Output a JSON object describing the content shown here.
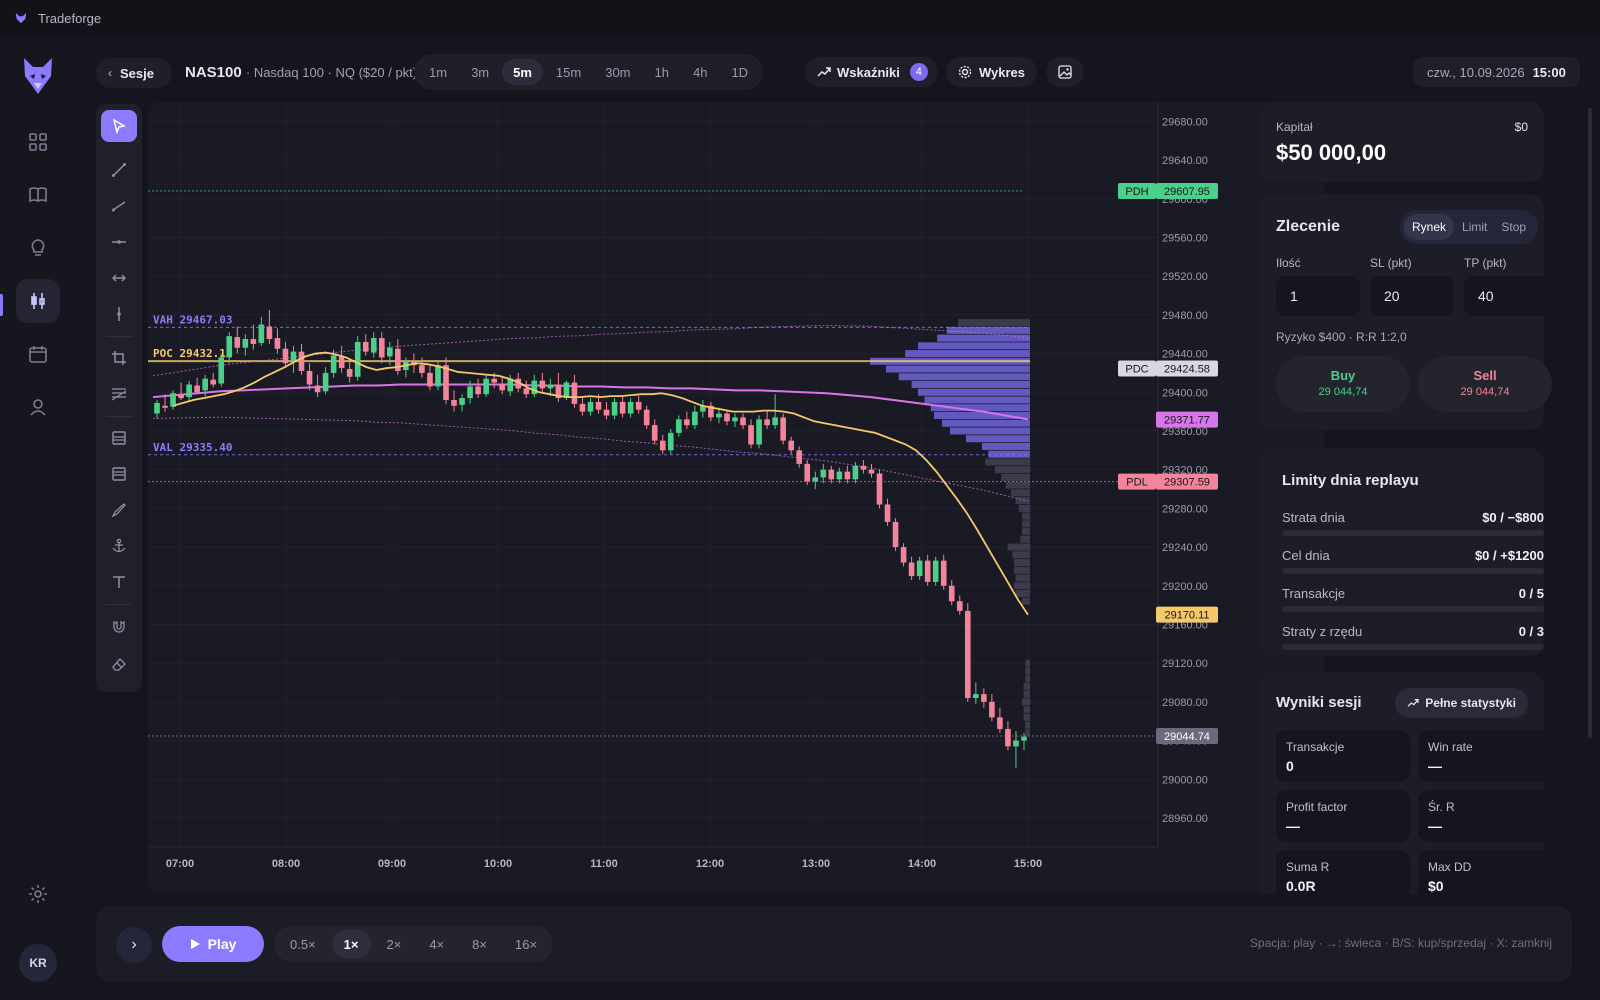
{
  "app": {
    "title": "Tradeforge",
    "avatar_initials": "KR"
  },
  "rail": {
    "icons": [
      "grid-icon",
      "book-icon",
      "lightbulb-icon",
      "candles-icon",
      "calendar-icon",
      "user-icon"
    ],
    "active": "candles-icon",
    "bottom_icon": "gear-icon"
  },
  "header": {
    "back_label": "Sesje",
    "symbol": "NAS100",
    "symbol_desc": "· Nasdaq 100 · NQ ($20 / pkt)",
    "timeframes": [
      "1m",
      "3m",
      "5m",
      "15m",
      "30m",
      "1h",
      "4h",
      "1D"
    ],
    "active_timeframe": "5m",
    "indicators_label": "Wskaźniki",
    "indicators_count": "4",
    "chart_label": "Wykres",
    "date": "czw., 10.09.2026",
    "time": "15:00"
  },
  "chart_data": {
    "type": "candlestick",
    "symbol": "NAS100",
    "timeframe": "5m",
    "x_ticks": [
      "07:00",
      "08:00",
      "09:00",
      "10:00",
      "11:00",
      "12:00",
      "13:00",
      "14:00",
      "15:00"
    ],
    "y_ticks": [
      "29680.00",
      "29640.00",
      "29600.00",
      "29560.00",
      "29520.00",
      "29480.00",
      "29440.00",
      "29400.00",
      "29360.00",
      "29320.00",
      "29280.00",
      "29240.00",
      "29200.00",
      "29160.00",
      "29120.00",
      "29080.00",
      "29040.00",
      "29000.00",
      "28960.00"
    ],
    "ylim": [
      28930,
      29700
    ],
    "price_labels": [
      {
        "tag": "PDH",
        "value": "29607.95",
        "color": "#4bd08a"
      },
      {
        "tag": "PDC",
        "value": "29424.58",
        "color": "#d8d8e4"
      },
      {
        "tag": "",
        "value": "29371.77",
        "color": "#d776e8"
      },
      {
        "tag": "PDL",
        "value": "29307.59",
        "color": "#f3849a"
      },
      {
        "tag": "",
        "value": "29170.11",
        "color": "#f5c96a"
      },
      {
        "tag": "",
        "value": "29044.74",
        "color": "#6a6a7c"
      }
    ],
    "annotations": [
      {
        "text": "VAH 29467.03",
        "value": 29467.03,
        "color": "#8b7bff"
      },
      {
        "text": "POC 29432.16",
        "value": 29432.16,
        "color": "#f5c96a"
      },
      {
        "text": "VAL 29335.40",
        "value": 29335.4,
        "color": "#8b7bff"
      }
    ],
    "last_price": 29044.74,
    "ema_last": 29170.11,
    "vwap_last": 29371.77,
    "candles_ohlc": [
      [
        29378,
        29392,
        29373,
        29389
      ],
      [
        29386,
        29398,
        29380,
        29384
      ],
      [
        29385,
        29402,
        29382,
        29399
      ],
      [
        29398,
        29410,
        29392,
        29394
      ],
      [
        29395,
        29412,
        29390,
        29408
      ],
      [
        29407,
        29415,
        29398,
        29400
      ],
      [
        29402,
        29418,
        29396,
        29414
      ],
      [
        29413,
        29420,
        29405,
        29408
      ],
      [
        29409,
        29440,
        29406,
        29436
      ],
      [
        29436,
        29462,
        29430,
        29458
      ],
      [
        29457,
        29468,
        29440,
        29446
      ],
      [
        29446,
        29460,
        29438,
        29455
      ],
      [
        29455,
        29470,
        29444,
        29450
      ],
      [
        29451,
        29478,
        29448,
        29470
      ],
      [
        29468,
        29485,
        29450,
        29455
      ],
      [
        29456,
        29466,
        29440,
        29445
      ],
      [
        29445,
        29452,
        29425,
        29430
      ],
      [
        29431,
        29448,
        29420,
        29442
      ],
      [
        29442,
        29450,
        29418,
        29422
      ],
      [
        29422,
        29430,
        29402,
        29408
      ],
      [
        29407,
        29418,
        29395,
        29400
      ],
      [
        29401,
        29426,
        29398,
        29420
      ],
      [
        29420,
        29444,
        29415,
        29438
      ],
      [
        29437,
        29448,
        29420,
        29425
      ],
      [
        29424,
        29434,
        29410,
        29416
      ],
      [
        29416,
        29458,
        29412,
        29452
      ],
      [
        29452,
        29460,
        29438,
        29442
      ],
      [
        29441,
        29462,
        29436,
        29456
      ],
      [
        29456,
        29462,
        29430,
        29436
      ],
      [
        29437,
        29452,
        29428,
        29446
      ],
      [
        29445,
        29455,
        29418,
        29422
      ],
      [
        29423,
        29436,
        29415,
        29432
      ],
      [
        29432,
        29440,
        29420,
        29428
      ],
      [
        29428,
        29436,
        29415,
        29420
      ],
      [
        29420,
        29428,
        29402,
        29406
      ],
      [
        29406,
        29432,
        29402,
        29428
      ],
      [
        29428,
        29436,
        29388,
        29392
      ],
      [
        29392,
        29402,
        29380,
        29386
      ],
      [
        29387,
        29398,
        29380,
        29394
      ],
      [
        29394,
        29412,
        29388,
        29406
      ],
      [
        29406,
        29414,
        29394,
        29398
      ],
      [
        29398,
        29418,
        29395,
        29414
      ],
      [
        29414,
        29420,
        29404,
        29410
      ],
      [
        29409,
        29416,
        29398,
        29402
      ],
      [
        29401,
        29418,
        29396,
        29414
      ],
      [
        29414,
        29420,
        29400,
        29404
      ],
      [
        29404,
        29412,
        29394,
        29398
      ],
      [
        29398,
        29418,
        29395,
        29412
      ],
      [
        29412,
        29420,
        29400,
        29404
      ],
      [
        29404,
        29414,
        29396,
        29408
      ],
      [
        29408,
        29420,
        29390,
        29394
      ],
      [
        29394,
        29412,
        29392,
        29410
      ],
      [
        29410,
        29418,
        29384,
        29388
      ],
      [
        29388,
        29396,
        29376,
        29380
      ],
      [
        29380,
        29394,
        29376,
        29390
      ],
      [
        29390,
        29398,
        29378,
        29382
      ],
      [
        29382,
        29390,
        29372,
        29376
      ],
      [
        29376,
        29394,
        29372,
        29390
      ],
      [
        29390,
        29396,
        29374,
        29378
      ],
      [
        29378,
        29394,
        29374,
        29390
      ],
      [
        29390,
        29396,
        29378,
        29382
      ],
      [
        29382,
        29386,
        29362,
        29366
      ],
      [
        29366,
        29372,
        29346,
        29350
      ],
      [
        29350,
        29356,
        29336,
        29340
      ],
      [
        29340,
        29362,
        29336,
        29358
      ],
      [
        29358,
        29376,
        29354,
        29372
      ],
      [
        29372,
        29380,
        29362,
        29366
      ],
      [
        29366,
        29386,
        29362,
        29380
      ],
      [
        29380,
        29392,
        29374,
        29386
      ],
      [
        29386,
        29390,
        29370,
        29374
      ],
      [
        29374,
        29384,
        29368,
        29378
      ],
      [
        29378,
        29382,
        29366,
        29370
      ],
      [
        29370,
        29378,
        29364,
        29374
      ],
      [
        29374,
        29378,
        29362,
        29366
      ],
      [
        29366,
        29372,
        29342,
        29346
      ],
      [
        29346,
        29376,
        29342,
        29372
      ],
      [
        29372,
        29380,
        29362,
        29366
      ],
      [
        29366,
        29398,
        29362,
        29374
      ],
      [
        29374,
        29378,
        29346,
        29350
      ],
      [
        29350,
        29354,
        29336,
        29340
      ],
      [
        29340,
        29344,
        29322,
        29326
      ],
      [
        29326,
        29330,
        29304,
        29308
      ],
      [
        29308,
        29318,
        29300,
        29312
      ],
      [
        29312,
        29326,
        29306,
        29320
      ],
      [
        29320,
        29324,
        29306,
        29310
      ],
      [
        29310,
        29322,
        29306,
        29318
      ],
      [
        29318,
        29324,
        29306,
        29310
      ],
      [
        29310,
        29328,
        29306,
        29324
      ],
      [
        29324,
        29330,
        29316,
        29320
      ],
      [
        29320,
        29326,
        29312,
        29316
      ],
      [
        29316,
        29320,
        29280,
        29284
      ],
      [
        29284,
        29290,
        29262,
        29266
      ],
      [
        29266,
        29270,
        29236,
        29240
      ],
      [
        29240,
        29244,
        29220,
        29224
      ],
      [
        29224,
        29230,
        29206,
        29210
      ],
      [
        29210,
        29230,
        29206,
        29226
      ],
      [
        29226,
        29232,
        29200,
        29204
      ],
      [
        29204,
        29230,
        29200,
        29226
      ],
      [
        29226,
        29232,
        29196,
        29200
      ],
      [
        29200,
        29206,
        29180,
        29184
      ],
      [
        29184,
        29190,
        29170,
        29174
      ],
      [
        29174,
        29182,
        29080,
        29084
      ],
      [
        29084,
        29100,
        29078,
        29088
      ],
      [
        29088,
        29094,
        29074,
        29080
      ],
      [
        29080,
        29088,
        29060,
        29064
      ],
      [
        29064,
        29074,
        29048,
        29052
      ],
      [
        29052,
        29060,
        29030,
        29034
      ],
      [
        29034,
        29050,
        29012,
        29040
      ],
      [
        29040,
        29048,
        29030,
        29044
      ]
    ],
    "ema": [
      29386,
      29389,
      29392,
      29394,
      29396,
      29398,
      29401,
      29405,
      29410,
      29416,
      29421,
      29426,
      29432,
      29437,
      29440,
      29441,
      29439,
      29436,
      29431,
      29426,
      29423,
      29425,
      29426,
      29428,
      29430,
      29429,
      29427,
      29424,
      29421,
      29420,
      29419,
      29418,
      29417,
      29414,
      29410,
      29404,
      29400,
      29398,
      29396,
      29395,
      29395,
      29396,
      29395,
      29396,
      29396,
      29397,
      29398,
      29398,
      29399,
      29397,
      29394,
      29390,
      29386,
      29384,
      29382,
      29380,
      29380,
      29380,
      29381,
      29381,
      29380,
      29378,
      29374,
      29370,
      29368,
      29366,
      29364,
      29362,
      29360,
      29358,
      29354,
      29350,
      29346,
      29340,
      29330,
      29318,
      29304,
      29290,
      29275,
      29258,
      29240,
      29222,
      29204,
      29186,
      29170
    ],
    "vwap": [
      29395,
      29397,
      29399,
      29401,
      29402,
      29403,
      29404,
      29405,
      29406,
      29407,
      29407,
      29408,
      29408,
      29408,
      29408,
      29408,
      29408,
      29407,
      29407,
      29406,
      29406,
      29405,
      29405,
      29404,
      29404,
      29403,
      29402,
      29402,
      29401,
      29400,
      29399,
      29397,
      29395,
      29392,
      29389,
      29386,
      29383,
      29380,
      29376,
      29372
    ],
    "volume_profile": [
      {
        "price": 29472,
        "vol": 0.45
      },
      {
        "price": 29464,
        "vol": 0.52
      },
      {
        "price": 29456,
        "vol": 0.58
      },
      {
        "price": 29448,
        "vol": 0.7
      },
      {
        "price": 29440,
        "vol": 0.78
      },
      {
        "price": 29432,
        "vol": 1.0
      },
      {
        "price": 29424,
        "vol": 0.9
      },
      {
        "price": 29416,
        "vol": 0.82
      },
      {
        "price": 29408,
        "vol": 0.74
      },
      {
        "price": 29400,
        "vol": 0.7
      },
      {
        "price": 29392,
        "vol": 0.66
      },
      {
        "price": 29384,
        "vol": 0.62
      },
      {
        "price": 29376,
        "vol": 0.6
      },
      {
        "price": 29368,
        "vol": 0.55
      },
      {
        "price": 29360,
        "vol": 0.5
      },
      {
        "price": 29352,
        "vol": 0.4
      },
      {
        "price": 29344,
        "vol": 0.3
      },
      {
        "price": 29336,
        "vol": 0.26
      },
      {
        "price": 29328,
        "vol": 0.28
      },
      {
        "price": 29320,
        "vol": 0.22
      },
      {
        "price": 29312,
        "vol": 0.18
      },
      {
        "price": 29304,
        "vol": 0.15
      },
      {
        "price": 29296,
        "vol": 0.12
      },
      {
        "price": 29288,
        "vol": 0.09
      },
      {
        "price": 29280,
        "vol": 0.07
      },
      {
        "price": 29272,
        "vol": 0.05
      },
      {
        "price": 29264,
        "vol": 0.05
      },
      {
        "price": 29256,
        "vol": 0.05
      },
      {
        "price": 29248,
        "vol": 0.06
      },
      {
        "price": 29240,
        "vol": 0.14
      },
      {
        "price": 29232,
        "vol": 0.11
      },
      {
        "price": 29224,
        "vol": 0.1
      },
      {
        "price": 29216,
        "vol": 0.1
      },
      {
        "price": 29208,
        "vol": 0.09
      },
      {
        "price": 29200,
        "vol": 0.1
      },
      {
        "price": 29192,
        "vol": 0.09
      },
      {
        "price": 29184,
        "vol": 0.05
      },
      {
        "price": 29120,
        "vol": 0.03
      },
      {
        "price": 29112,
        "vol": 0.03
      },
      {
        "price": 29104,
        "vol": 0.03
      },
      {
        "price": 29096,
        "vol": 0.04
      },
      {
        "price": 29088,
        "vol": 0.04
      },
      {
        "price": 29080,
        "vol": 0.05
      },
      {
        "price": 29072,
        "vol": 0.04
      },
      {
        "price": 29064,
        "vol": 0.04
      },
      {
        "price": 29056,
        "vol": 0.03
      },
      {
        "price": 29048,
        "vol": 0.03
      }
    ]
  },
  "toolbar": {
    "tools": [
      "cursor-icon",
      "trendline-icon",
      "ray-icon",
      "horizontal-line-icon",
      "horizontal-ray-icon",
      "vertical-line-icon",
      "rectangle-icon",
      "fib-icon",
      "long-position-icon",
      "short-position-icon",
      "brush-icon",
      "anchor-icon",
      "text-icon",
      "magnet-icon",
      "eraser-icon"
    ],
    "active": "cursor-icon"
  },
  "capital": {
    "label": "Kapitał",
    "pnl": "$0",
    "value": "$50 000,00"
  },
  "order": {
    "title": "Zlecenie",
    "types": [
      "Rynek",
      "Limit",
      "Stop"
    ],
    "active_type": "Rynek",
    "qty_label": "Ilość",
    "qty": "1",
    "sl_label": "SL (pkt)",
    "sl": "20",
    "tp_label": "TP (pkt)",
    "tp": "40",
    "risk": "Ryzyko $400 · R:R 1:2,0",
    "buy_label": "Buy",
    "buy_price": "29 044,74",
    "sell_label": "Sell",
    "sell_price": "29 044,74"
  },
  "limits": {
    "title": "Limity dnia replayu",
    "rows": [
      {
        "name": "Strata dnia",
        "value": "$0 / −$800"
      },
      {
        "name": "Cel dnia",
        "value": "$0 / +$1200"
      },
      {
        "name": "Transakcje",
        "value": "0 / 5"
      },
      {
        "name": "Straty z rzędu",
        "value": "0 / 3"
      }
    ]
  },
  "results": {
    "title": "Wyniki sesji",
    "stats_button": "Pełne statystyki",
    "stats": [
      {
        "label": "Transakcje",
        "value": "0"
      },
      {
        "label": "Win rate",
        "value": "—"
      },
      {
        "label": "Profit factor",
        "value": "—"
      },
      {
        "label": "Śr. R",
        "value": "—"
      },
      {
        "label": "Suma R",
        "value": "0.0R"
      },
      {
        "label": "Max DD",
        "value": "$0"
      }
    ]
  },
  "playback": {
    "play_label": "Play",
    "speeds": [
      "0.5×",
      "1×",
      "2×",
      "4×",
      "8×",
      "16×"
    ],
    "active_speed": "1×",
    "hint": "Spacja: play · →: świeca · B/S: kup/sprzedaj · X: zamknij"
  },
  "colors": {
    "accent": "#8b7bff",
    "bull": "#4bd08a",
    "bear": "#f3849a",
    "ema": "#f5c96a",
    "vwap": "#d776e8"
  }
}
